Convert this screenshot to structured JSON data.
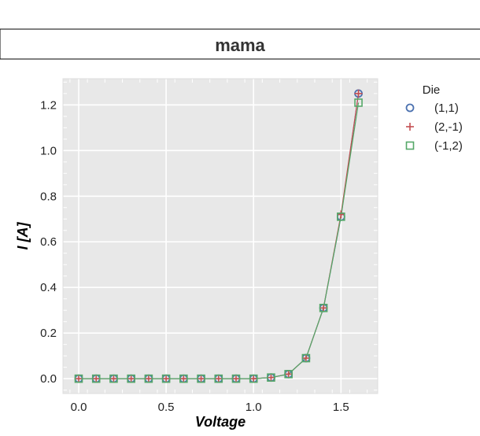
{
  "chart_data": {
    "type": "line",
    "title": "mama",
    "xlabel": "Voltage",
    "ylabel": "I [A]",
    "xlim": [
      -0.09,
      1.71
    ],
    "ylim": [
      -0.065,
      1.315
    ],
    "xticks": [
      "0.0",
      "0.5",
      "1.0",
      "1.5"
    ],
    "yticks": [
      "0.0",
      "0.2",
      "0.4",
      "0.6",
      "0.8",
      "1.0",
      "1.2"
    ],
    "grid": true,
    "legend": {
      "title": "Die",
      "placement": "outside-right"
    },
    "x": [
      0.0,
      0.1,
      0.2,
      0.3,
      0.4,
      0.5,
      0.6,
      0.7,
      0.8,
      0.9,
      1.0,
      1.1,
      1.2,
      1.3,
      1.4,
      1.5,
      1.6
    ],
    "series": [
      {
        "name": "(1,1)",
        "marker": "circle",
        "color": "#4c72b0",
        "values": [
          0,
          0,
          0,
          0,
          0,
          0,
          0,
          0,
          0,
          0,
          0,
          0.005,
          0.02,
          0.09,
          0.31,
          0.71,
          1.25
        ]
      },
      {
        "name": "(2,-1)",
        "marker": "plus",
        "color": "#c44e52",
        "values": [
          0,
          0,
          0,
          0,
          0,
          0,
          0,
          0,
          0,
          0,
          0,
          0.005,
          0.02,
          0.09,
          0.31,
          0.72,
          1.25
        ]
      },
      {
        "name": "(-1,2)",
        "marker": "square",
        "color": "#55a868",
        "values": [
          0,
          0,
          0,
          0,
          0,
          0,
          0,
          0,
          0,
          0,
          0,
          0.005,
          0.02,
          0.09,
          0.31,
          0.71,
          1.21
        ]
      }
    ]
  },
  "colors": {
    "plot_background": "#e8e8e8",
    "grid": "#ffffff"
  }
}
